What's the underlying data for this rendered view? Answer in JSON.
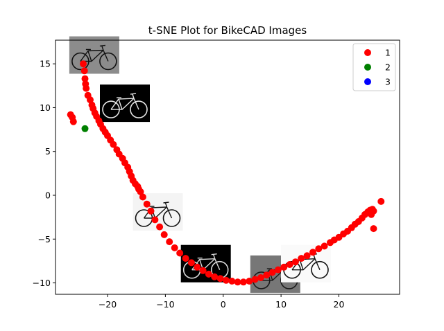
{
  "chart_data": {
    "type": "scatter",
    "title": "t-SNE Plot for BikeCAD Images",
    "xlabel": "",
    "ylabel": "",
    "xlim": [
      -29.0,
      30.5
    ],
    "ylim": [
      -11.3,
      17.7
    ],
    "xticks": [
      -20,
      -10,
      0,
      10,
      20
    ],
    "xtick_labels": [
      "−20",
      "−10",
      "0",
      "10",
      "20"
    ],
    "yticks": [
      -10,
      -5,
      0,
      5,
      10,
      15
    ],
    "ytick_labels": [
      "−10",
      "−5",
      "0",
      "5",
      "10",
      "15"
    ],
    "grid": false,
    "legend_position": "top-right",
    "series": [
      {
        "name": "1",
        "color": "#ff0000",
        "points": [
          [
            -24.2,
            15.0
          ],
          [
            -24.0,
            14.2
          ],
          [
            -23.9,
            13.3
          ],
          [
            -23.8,
            12.7
          ],
          [
            -23.7,
            12.2
          ],
          [
            -23.4,
            11.4
          ],
          [
            -23.0,
            10.9
          ],
          [
            -22.7,
            10.3
          ],
          [
            -22.5,
            9.9
          ],
          [
            -22.2,
            9.4
          ],
          [
            -21.9,
            9.0
          ],
          [
            -21.5,
            8.5
          ],
          [
            -21.2,
            8.1
          ],
          [
            -20.8,
            7.6
          ],
          [
            -20.4,
            7.2
          ],
          [
            -20.0,
            6.8
          ],
          [
            -19.5,
            6.3
          ],
          [
            -19.0,
            5.8
          ],
          [
            -18.4,
            5.2
          ],
          [
            -18.0,
            4.7
          ],
          [
            -17.4,
            4.2
          ],
          [
            -17.0,
            3.7
          ],
          [
            -16.5,
            3.2
          ],
          [
            -16.2,
            2.7
          ],
          [
            -15.9,
            2.2
          ],
          [
            -15.6,
            1.7
          ],
          [
            -15.2,
            1.3
          ],
          [
            -14.8,
            1.0
          ],
          [
            -14.6,
            0.7
          ],
          [
            -14.3,
            0.4
          ],
          [
            -13.9,
            -0.2
          ],
          [
            -13.2,
            -1.0
          ],
          [
            -12.5,
            -1.8
          ],
          [
            -11.8,
            -2.8
          ],
          [
            -11.0,
            -3.6
          ],
          [
            -10.2,
            -4.5
          ],
          [
            -9.3,
            -5.3
          ],
          [
            -8.4,
            -6.0
          ],
          [
            -7.5,
            -6.6
          ],
          [
            -6.5,
            -7.2
          ],
          [
            -5.5,
            -7.7
          ],
          [
            -4.5,
            -8.2
          ],
          [
            -3.5,
            -8.6
          ],
          [
            -2.5,
            -9.0
          ],
          [
            -1.5,
            -9.3
          ],
          [
            -0.5,
            -9.5
          ],
          [
            0.5,
            -9.7
          ],
          [
            1.5,
            -9.8
          ],
          [
            2.5,
            -9.9
          ],
          [
            3.5,
            -9.9
          ],
          [
            4.5,
            -9.8
          ],
          [
            5.5,
            -9.6
          ],
          [
            6.5,
            -9.4
          ],
          [
            7.5,
            -9.1
          ],
          [
            8.5,
            -8.8
          ],
          [
            9.5,
            -8.5
          ],
          [
            10.5,
            -8.2
          ],
          [
            11.5,
            -7.9
          ],
          [
            12.5,
            -7.6
          ],
          [
            13.5,
            -7.2
          ],
          [
            14.5,
            -6.9
          ],
          [
            15.5,
            -6.5
          ],
          [
            16.5,
            -6.1
          ],
          [
            17.5,
            -5.8
          ],
          [
            18.5,
            -5.4
          ],
          [
            19.2,
            -5.1
          ],
          [
            20.0,
            -4.8
          ],
          [
            20.8,
            -4.4
          ],
          [
            21.5,
            -4.1
          ],
          [
            22.2,
            -3.7
          ],
          [
            22.8,
            -3.3
          ],
          [
            23.4,
            -3.0
          ],
          [
            24.0,
            -2.6
          ],
          [
            24.5,
            -2.2
          ],
          [
            25.0,
            -1.9
          ],
          [
            25.4,
            -1.7
          ],
          [
            25.8,
            -1.6
          ],
          [
            26.0,
            -1.8
          ],
          [
            25.6,
            -2.2
          ],
          [
            27.3,
            -0.7
          ],
          [
            26.0,
            -3.8
          ],
          [
            -26.4,
            9.2
          ],
          [
            -26.1,
            8.9
          ],
          [
            -25.9,
            8.4
          ]
        ]
      },
      {
        "name": "2",
        "color": "#008000",
        "points": [
          [
            -23.9,
            7.6
          ]
        ]
      },
      {
        "name": "3",
        "color": "#0000ff",
        "points": []
      }
    ],
    "thumbnails": [
      {
        "x": -22.3,
        "y": 16.0,
        "bg": "#8c8c8c",
        "stroke": "#111111"
      },
      {
        "x": -17.0,
        "y": 10.5,
        "bg": "#000000",
        "stroke": "#e6e6e6"
      },
      {
        "x": -11.3,
        "y": -1.9,
        "bg": "#f4f4f4",
        "stroke": "#111111"
      },
      {
        "x": -3.0,
        "y": -7.8,
        "bg": "#000000",
        "stroke": "#d9d9d9"
      },
      {
        "x": 9.0,
        "y": -9.0,
        "bg": "#777777",
        "stroke": "#1a1a1a"
      },
      {
        "x": 14.3,
        "y": -7.8,
        "bg": "#fafafa",
        "stroke": "#111111"
      }
    ]
  }
}
